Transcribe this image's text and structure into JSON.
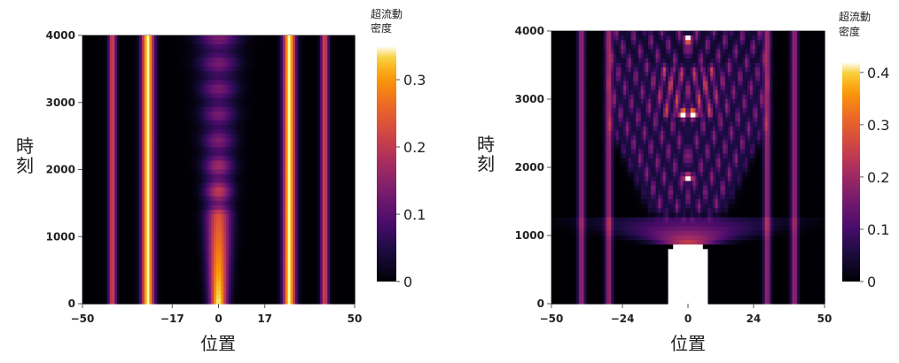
{
  "chart_data": [
    {
      "type": "heatmap",
      "xlabel": "位置",
      "ylabel": [
        "時",
        "刻"
      ],
      "x_range": [
        -50,
        50
      ],
      "y_range": [
        0,
        4000
      ],
      "x_ticks": [
        -50,
        -17,
        0,
        17,
        50
      ],
      "y_ticks": [
        0,
        1000,
        2000,
        3000,
        4000
      ],
      "colorbar": {
        "title": [
          "超流動",
          "密度"
        ],
        "range": [
          0,
          0.35
        ],
        "ticks": [
          0,
          0.1,
          0.2,
          0.3
        ],
        "tick_labels": [
          "0",
          "0.1",
          "0.2",
          "0.3"
        ],
        "colormap": "inferno"
      },
      "features": {
        "vertical_lines": [
          {
            "x": -39,
            "level": 0.22
          },
          {
            "x": -26,
            "level": 0.35
          },
          {
            "x": 26,
            "level": 0.35
          },
          {
            "x": 39,
            "level": 0.22
          }
        ],
        "center_column": {
          "x": 0,
          "level_t0": 0.35,
          "level_t4000": 0.13
        }
      }
    },
    {
      "type": "heatmap",
      "xlabel": "位置",
      "ylabel": [
        "時",
        "刻"
      ],
      "x_range": [
        -50,
        50
      ],
      "y_range": [
        0,
        4000
      ],
      "x_ticks": [
        -50,
        -24,
        0,
        24,
        50
      ],
      "y_ticks": [
        0,
        1000,
        2000,
        3000,
        4000
      ],
      "colorbar": {
        "title": [
          "超流動",
          "密度"
        ],
        "range": [
          0,
          0.42
        ],
        "ticks": [
          0,
          0.1,
          0.2,
          0.3,
          0.4
        ],
        "tick_labels": [
          "0",
          "0.1",
          "0.2",
          "0.3",
          "0.4"
        ],
        "colormap": "inferno"
      },
      "features": {
        "vertical_lines": [
          {
            "x": -39,
            "level": 0.2
          },
          {
            "x": -29,
            "level": 0.2
          },
          {
            "x": 29,
            "level": 0.2
          },
          {
            "x": 39,
            "level": 0.2
          }
        ],
        "saturated_blob": {
          "x_extent": [
            -7,
            7
          ],
          "t_extent": [
            0,
            900
          ]
        },
        "bright_spots": [
          {
            "x": 0,
            "t": 1850
          },
          {
            "x": 0,
            "t": 3880
          },
          {
            "x": -2,
            "t": 2780
          },
          {
            "x": 2,
            "t": 2780
          }
        ]
      }
    }
  ]
}
